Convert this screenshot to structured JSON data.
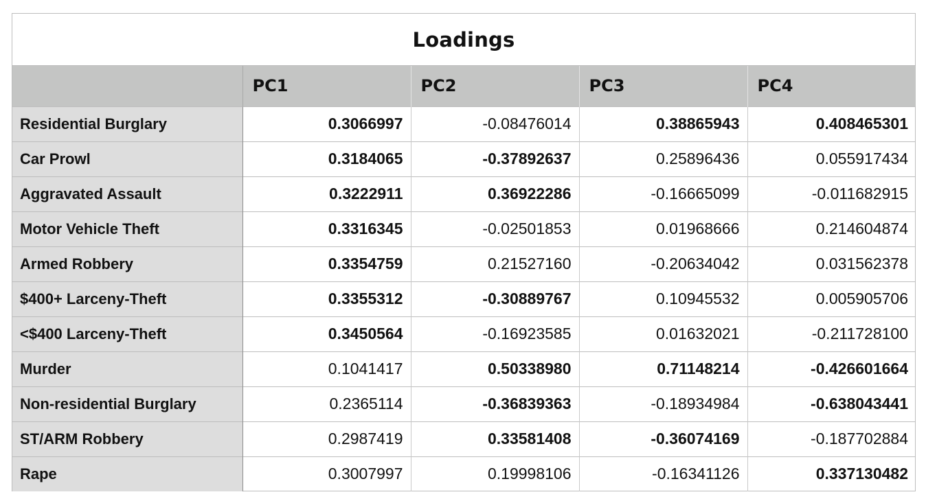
{
  "table": {
    "title": "Loadings",
    "columns": [
      "",
      "PC1",
      "PC2",
      "PC3",
      "PC4"
    ],
    "rows": [
      {
        "label": "Residential Burglary",
        "values": [
          "0.3066997",
          "-0.08476014",
          "0.38865943",
          "0.408465301"
        ],
        "bold": [
          true,
          false,
          true,
          true
        ]
      },
      {
        "label": "Car Prowl",
        "values": [
          "0.3184065",
          "-0.37892637",
          "0.25896436",
          "0.055917434"
        ],
        "bold": [
          true,
          true,
          false,
          false
        ]
      },
      {
        "label": "Aggravated Assault",
        "values": [
          "0.3222911",
          "0.36922286",
          "-0.16665099",
          "-0.011682915"
        ],
        "bold": [
          true,
          true,
          false,
          false
        ]
      },
      {
        "label": "Motor Vehicle Theft",
        "values": [
          "0.3316345",
          "-0.02501853",
          "0.01968666",
          "0.214604874"
        ],
        "bold": [
          true,
          false,
          false,
          false
        ]
      },
      {
        "label": "Armed Robbery",
        "values": [
          "0.3354759",
          "0.21527160",
          "-0.20634042",
          "0.031562378"
        ],
        "bold": [
          true,
          false,
          false,
          false
        ]
      },
      {
        "label": "$400+ Larceny-Theft",
        "values": [
          "0.3355312",
          "-0.30889767",
          "0.10945532",
          "0.005905706"
        ],
        "bold": [
          true,
          true,
          false,
          false
        ]
      },
      {
        "label": "<$400 Larceny-Theft",
        "values": [
          "0.3450564",
          "-0.16923585",
          "0.01632021",
          "-0.211728100"
        ],
        "bold": [
          true,
          false,
          false,
          false
        ]
      },
      {
        "label": "Murder",
        "values": [
          "0.1041417",
          "0.50338980",
          "0.71148214",
          "-0.426601664"
        ],
        "bold": [
          false,
          true,
          true,
          true
        ]
      },
      {
        "label": "Non-residential Burglary",
        "values": [
          "0.2365114",
          "-0.36839363",
          "-0.18934984",
          "-0.638043441"
        ],
        "bold": [
          false,
          true,
          false,
          true
        ]
      },
      {
        "label": "ST/ARM Robbery",
        "values": [
          "0.2987419",
          "0.33581408",
          "-0.36074169",
          "-0.187702884"
        ],
        "bold": [
          false,
          true,
          true,
          false
        ]
      },
      {
        "label": "Rape",
        "values": [
          "0.3007997",
          "0.19998106",
          "-0.16341126",
          "0.337130482"
        ],
        "bold": [
          false,
          false,
          false,
          true
        ]
      }
    ]
  }
}
